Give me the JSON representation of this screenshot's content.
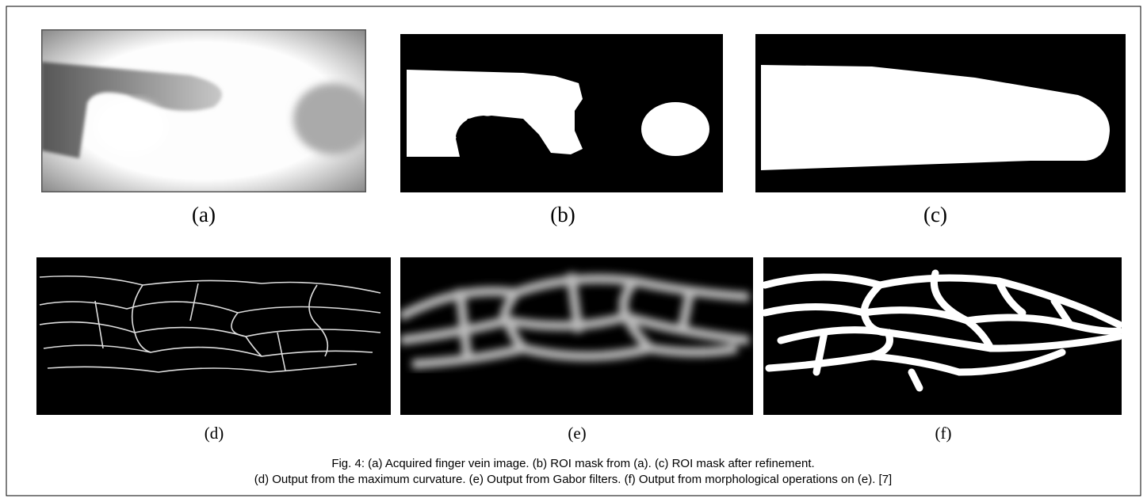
{
  "panels": [
    {
      "label": "(a)"
    },
    {
      "label": "(b)"
    },
    {
      "label": "(c)"
    },
    {
      "label": "(d)"
    },
    {
      "label": "(e)"
    },
    {
      "label": "(f)"
    }
  ],
  "caption": [
    "Fig. 4: (a) Acquired finger vein image. (b) ROI mask from (a).  (c) ROI mask after refinement.",
    "(d) Output from the maximum curvature. (e) Output from Gabor filters. (f) Output from morphological operations on (e). [7]"
  ]
}
